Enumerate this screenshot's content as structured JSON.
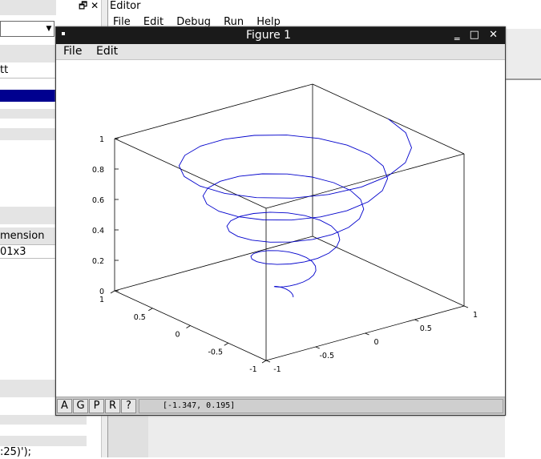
{
  "left_panel": {
    "dock_icons": "🗗 ✕",
    "label_top": "tt",
    "col_header": "mension",
    "cell_value": "01x3",
    "code_fragment": ":25)');"
  },
  "editor": {
    "title": "Editor",
    "menu": [
      "File",
      "Edit",
      "Debug",
      "Run",
      "Help"
    ]
  },
  "figure": {
    "title": "Figure 1",
    "controls": "‗ □ ✕",
    "menu": [
      "File",
      "Edit"
    ],
    "status_buttons": [
      "A",
      "G",
      "P",
      "R",
      "?"
    ],
    "coords": "[-1.347, 0.195]"
  },
  "colors": {
    "curve": "#0000cc",
    "selection": "#00008f"
  },
  "chart_data": {
    "type": "line3d",
    "title": "",
    "xlabel": "",
    "ylabel": "",
    "zlabel": "",
    "xlim": [
      -1,
      1
    ],
    "ylim": [
      -1,
      1
    ],
    "zlim": [
      0,
      1
    ],
    "x_ticks": [
      "-1",
      "-0.5",
      "0",
      "0.5",
      "1"
    ],
    "y_ticks": [
      "-1",
      "-0.5",
      "0",
      "0.5",
      "1"
    ],
    "z_ticks": [
      "0",
      "0.2",
      "0.4",
      "0.6",
      "0.8",
      "1"
    ],
    "box": true,
    "grid": false,
    "series": [
      {
        "curve": "helix",
        "turns": 5,
        "points": 101,
        "radius": [
          0.04,
          1.0
        ],
        "z": [
          0.0,
          1.0
        ]
      }
    ]
  }
}
